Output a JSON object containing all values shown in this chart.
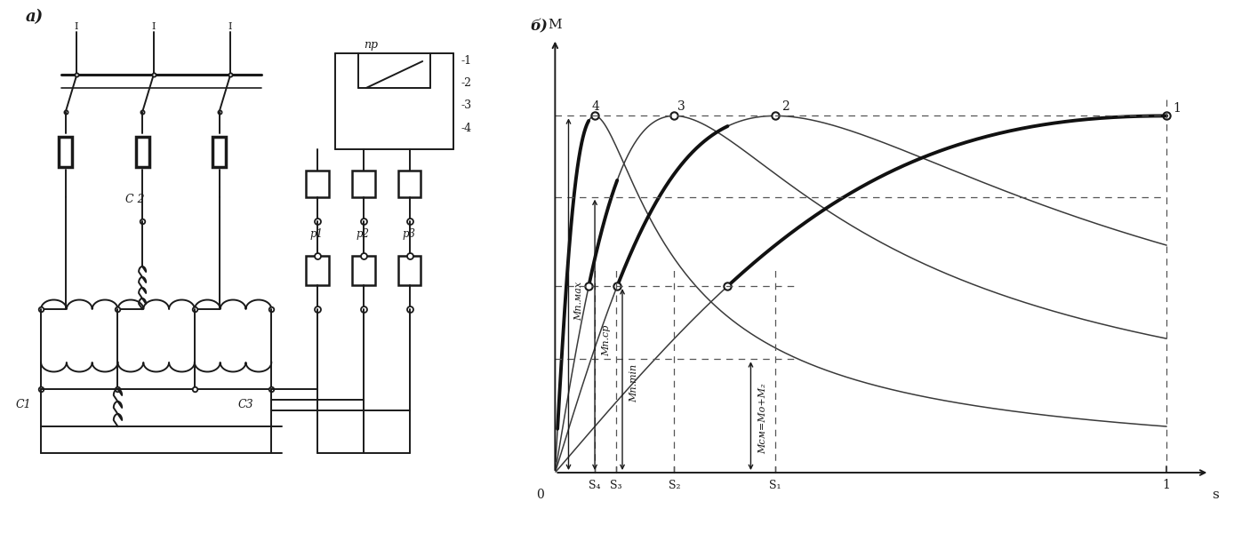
{
  "title_a": "а)",
  "title_b": "б)",
  "bg_color": "#ffffff",
  "lc": "#1a1a1a",
  "s_labels": [
    "S₄",
    "S₃",
    "S₂",
    "S₁"
  ],
  "s_values": [
    0.065,
    0.1,
    0.195,
    0.36
  ],
  "Mm": 0.88,
  "M_cp": 0.68,
  "M_min": 0.46,
  "M_cm": 0.28,
  "sm_values": [
    1.0,
    0.36,
    0.195,
    0.065
  ],
  "ann_max": "Mп.мax",
  "ann_cp": "Mп.сp",
  "ann_min": "Mп.min",
  "ann_cm": "Mсм=Mо+M₂"
}
